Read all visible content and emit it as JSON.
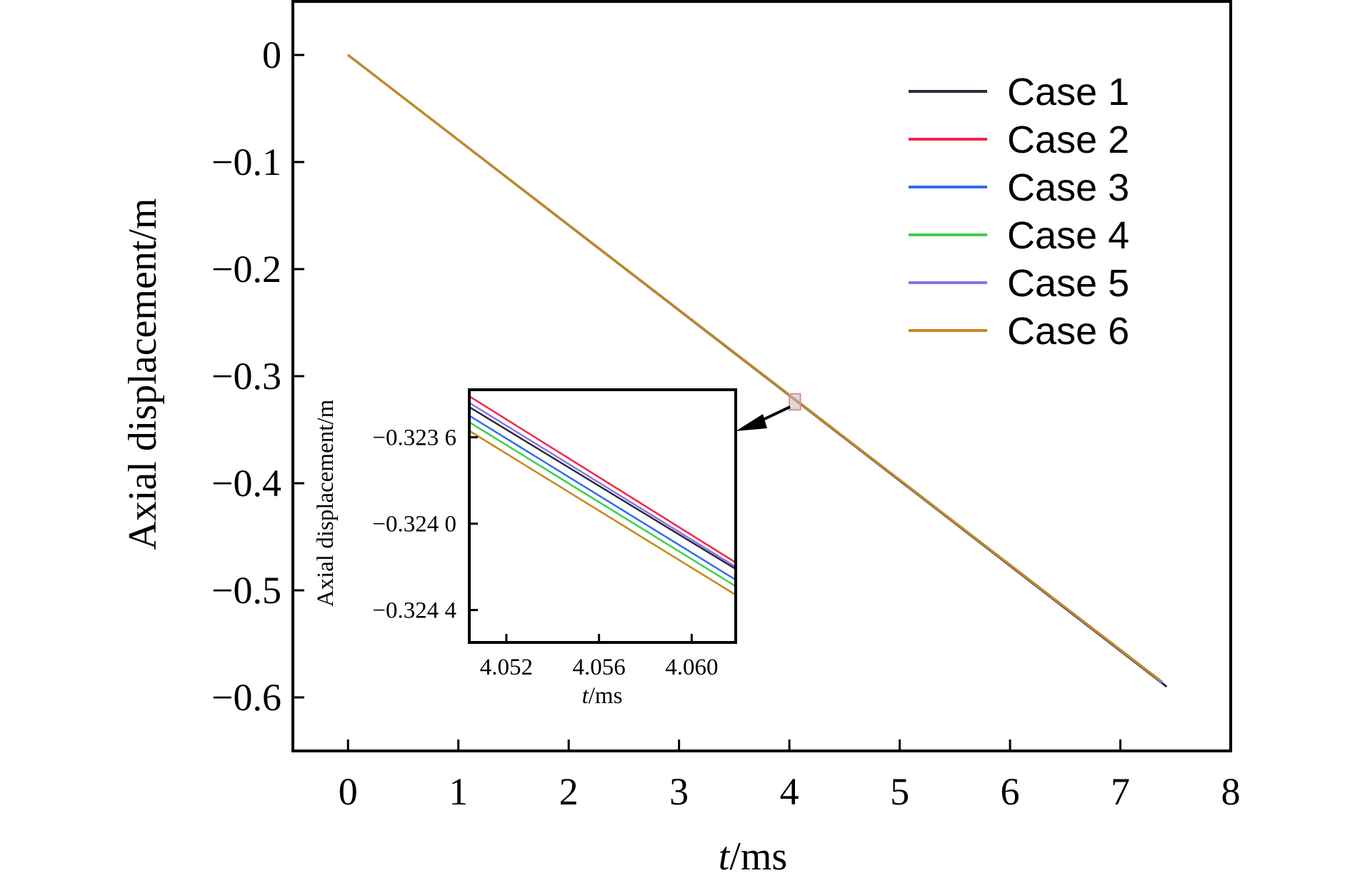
{
  "chart_data": [
    {
      "type": "line",
      "xlabel_italic": "t",
      "xlabel_rest": "/ms",
      "ylabel": "Axial displacement/m",
      "xlim": [
        -0.5,
        8
      ],
      "ylim": [
        -0.65,
        0.05
      ],
      "xticks": [
        0,
        1,
        2,
        3,
        4,
        5,
        6,
        7,
        8
      ],
      "xtick_labels": [
        "0",
        "1",
        "2",
        "3",
        "4",
        "5",
        "6",
        "7",
        "8"
      ],
      "yticks": [
        0,
        -0.1,
        -0.2,
        -0.3,
        -0.4,
        -0.5,
        -0.6
      ],
      "ytick_labels": [
        "0",
        "−0.1",
        "−0.2",
        "−0.3",
        "−0.4",
        "−0.5",
        "−0.6"
      ],
      "grid": false,
      "legend_position": "top-right",
      "series": [
        {
          "name": "Case 1",
          "color": "#2b2b3a",
          "x": [
            0,
            7.42
          ],
          "y": [
            0,
            -0.59
          ]
        },
        {
          "name": "Case 2",
          "color": "#f0284a",
          "x": [
            0,
            7.38
          ],
          "y": [
            0,
            -0.586
          ]
        },
        {
          "name": "Case 3",
          "color": "#2f6fe8",
          "x": [
            0,
            7.38
          ],
          "y": [
            0,
            -0.586
          ]
        },
        {
          "name": "Case 4",
          "color": "#3fcf4f",
          "x": [
            0,
            7.38
          ],
          "y": [
            0,
            -0.586
          ]
        },
        {
          "name": "Case 5",
          "color": "#8a75e6",
          "x": [
            0,
            7.38
          ],
          "y": [
            0,
            -0.586
          ]
        },
        {
          "name": "Case 6",
          "color": "#c8861a",
          "x": [
            0,
            7.36
          ],
          "y": [
            0,
            -0.584
          ]
        }
      ],
      "zoom_marker": {
        "x": [
          4.0,
          4.1
        ],
        "y": [
          -0.3315,
          -0.3165
        ],
        "color": "#e58a8a"
      }
    },
    {
      "type": "line",
      "role": "inset",
      "xlabel_italic": "t",
      "xlabel_rest": "/ms",
      "ylabel": "Axial displacement/m",
      "xlim": [
        4.0504,
        4.0619
      ],
      "ylim": [
        -0.32455,
        -0.32338
      ],
      "xticks": [
        4.052,
        4.056,
        4.06
      ],
      "xtick_labels": [
        "4.052",
        "4.056",
        "4.060"
      ],
      "yticks": [
        -0.3236,
        -0.324,
        -0.3244
      ],
      "ytick_labels": [
        "−0.323 6",
        "−0.324 0",
        "−0.324 4"
      ],
      "series": [
        {
          "name": "Case 1",
          "color": "#2b2b3a",
          "x": [
            4.0504,
            4.0619
          ],
          "y": [
            -0.32346,
            -0.32421
          ]
        },
        {
          "name": "Case 2",
          "color": "#f0284a",
          "x": [
            4.0504,
            4.0619
          ],
          "y": [
            -0.32341,
            -0.32418
          ]
        },
        {
          "name": "Case 3",
          "color": "#2f6fe8",
          "x": [
            4.0504,
            4.0619
          ],
          "y": [
            -0.3235,
            -0.32426
          ]
        },
        {
          "name": "Case 4",
          "color": "#3fcf4f",
          "x": [
            4.0504,
            4.0619
          ],
          "y": [
            -0.32353,
            -0.32429
          ]
        },
        {
          "name": "Case 5",
          "color": "#8a75e6",
          "x": [
            4.0504,
            4.0619
          ],
          "y": [
            -0.32344,
            -0.3242
          ]
        },
        {
          "name": "Case 6",
          "color": "#c8861a",
          "x": [
            4.0504,
            4.0619
          ],
          "y": [
            -0.32357,
            -0.32433
          ]
        }
      ]
    }
  ]
}
